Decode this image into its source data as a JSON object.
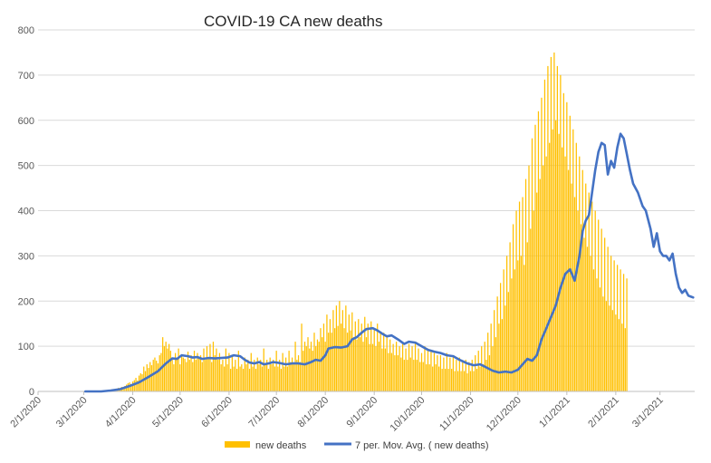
{
  "chart_data": {
    "type": "bar",
    "title": "COVID-19 CA new deaths",
    "xlabel": "",
    "ylabel": "",
    "ylim": [
      0,
      800
    ],
    "yticks": [
      "0",
      "100",
      "200",
      "300",
      "400",
      "500",
      "600",
      "700",
      "800"
    ],
    "xticks": [
      "2/1/2020",
      "3/1/2020",
      "4/1/2020",
      "5/1/2020",
      "6/1/2020",
      "7/1/2020",
      "8/1/2020",
      "9/1/2020",
      "10/1/2020",
      "11/1/2020",
      "12/1/2020",
      "1/1/2021",
      "2/1/2021",
      "3/1/2021"
    ],
    "x_start": "2020-02-01",
    "x_end": "2021-03-23",
    "grid": true,
    "legend_position": "bottom",
    "series": [
      {
        "name": "new deaths",
        "kind": "bar",
        "color": "#ffc000",
        "start_date": "2020-02-01",
        "values": [
          0,
          0,
          0,
          0,
          0,
          0,
          0,
          0,
          0,
          0,
          0,
          0,
          0,
          0,
          0,
          0,
          0,
          0,
          0,
          0,
          0,
          0,
          0,
          0,
          0,
          0,
          0,
          0,
          0,
          0,
          0,
          0,
          0,
          0,
          0,
          1,
          0,
          2,
          0,
          0,
          0,
          1,
          2,
          1,
          3,
          1,
          2,
          4,
          5,
          3,
          6,
          8,
          7,
          10,
          6,
          12,
          15,
          18,
          20,
          16,
          22,
          25,
          30,
          24,
          35,
          40,
          38,
          55,
          45,
          60,
          52,
          65,
          58,
          70,
          75,
          68,
          62,
          80,
          85,
          120,
          100,
          110,
          95,
          105,
          90,
          75,
          60,
          85,
          70,
          95,
          60,
          80,
          75,
          72,
          65,
          88,
          70,
          80,
          65,
          90,
          70,
          85,
          75,
          80,
          65,
          95,
          70,
          100,
          75,
          105,
          65,
          110,
          80,
          95,
          70,
          85,
          60,
          70,
          55,
          95,
          60,
          85,
          50,
          80,
          55,
          70,
          50,
          90,
          55,
          60,
          50,
          75,
          60,
          70,
          50,
          85,
          55,
          70,
          50,
          75,
          60,
          70,
          55,
          95,
          60,
          70,
          50,
          75,
          60,
          70,
          55,
          90,
          55,
          70,
          50,
          85,
          55,
          75,
          55,
          90,
          65,
          75,
          60,
          110,
          70,
          80,
          65,
          150,
          90,
          110,
          100,
          120,
          95,
          110,
          90,
          130,
          100,
          115,
          110,
          140,
          120,
          150,
          110,
          170,
          130,
          160,
          130,
          180,
          140,
          190,
          145,
          200,
          150,
          180,
          140,
          190,
          130,
          170,
          135,
          175,
          120,
          155,
          115,
          160,
          120,
          150,
          110,
          165,
          120,
          150,
          105,
          155,
          105,
          140,
          100,
          150,
          110,
          130,
          95,
          130,
          95,
          120,
          85,
          115,
          85,
          105,
          80,
          110,
          80,
          100,
          75,
          105,
          70,
          95,
          70,
          105,
          75,
          100,
          70,
          110,
          70,
          95,
          65,
          85,
          65,
          100,
          60,
          95,
          60,
          90,
          55,
          85,
          60,
          80,
          55,
          80,
          50,
          75,
          50,
          85,
          50,
          75,
          50,
          80,
          45,
          70,
          45,
          75,
          45,
          65,
          45,
          70,
          40,
          65,
          45,
          70,
          45,
          80,
          50,
          90,
          55,
          100,
          60,
          110,
          70,
          130,
          80,
          150,
          100,
          180,
          120,
          210,
          150,
          240,
          160,
          270,
          190,
          300,
          220,
          330,
          250,
          370,
          270,
          400,
          290,
          420,
          300,
          430,
          280,
          470,
          330,
          500,
          360,
          560,
          400,
          590,
          440,
          620,
          470,
          650,
          500,
          690,
          520,
          720,
          550,
          740,
          580,
          750,
          600,
          720,
          570,
          700,
          540,
          660,
          520,
          640,
          490,
          610,
          460,
          580,
          430,
          550,
          400,
          520,
          370,
          490,
          340,
          460,
          320,
          440,
          300,
          420,
          270,
          400,
          250,
          380,
          230,
          360,
          210,
          340,
          200,
          320,
          190,
          300,
          180,
          290,
          170,
          280,
          160,
          270,
          150,
          260,
          140,
          250
        ]
      },
      {
        "name": "7 per. Mov. Avg. ( new deaths)",
        "kind": "line",
        "color": "#4472c4",
        "points": [
          [
            "2020-03-02",
            0
          ],
          [
            "2020-03-12",
            0
          ],
          [
            "2020-03-18",
            2
          ],
          [
            "2020-03-24",
            5
          ],
          [
            "2020-03-30",
            12
          ],
          [
            "2020-04-05",
            20
          ],
          [
            "2020-04-11",
            32
          ],
          [
            "2020-04-17",
            45
          ],
          [
            "2020-04-22",
            62
          ],
          [
            "2020-04-26",
            73
          ],
          [
            "2020-04-29",
            72
          ],
          [
            "2020-05-02",
            80
          ],
          [
            "2020-05-06",
            78
          ],
          [
            "2020-05-09",
            75
          ],
          [
            "2020-05-12",
            76
          ],
          [
            "2020-05-15",
            72
          ],
          [
            "2020-05-19",
            74
          ],
          [
            "2020-05-23",
            73
          ],
          [
            "2020-05-27",
            74
          ],
          [
            "2020-05-31",
            75
          ],
          [
            "2020-06-04",
            80
          ],
          [
            "2020-06-08",
            78
          ],
          [
            "2020-06-11",
            70
          ],
          [
            "2020-06-14",
            64
          ],
          [
            "2020-06-17",
            62
          ],
          [
            "2020-06-20",
            65
          ],
          [
            "2020-06-23",
            60
          ],
          [
            "2020-06-26",
            62
          ],
          [
            "2020-06-29",
            65
          ],
          [
            "2020-07-03",
            63
          ],
          [
            "2020-07-07",
            60
          ],
          [
            "2020-07-11",
            62
          ],
          [
            "2020-07-15",
            62
          ],
          [
            "2020-07-19",
            60
          ],
          [
            "2020-07-23",
            65
          ],
          [
            "2020-07-26",
            70
          ],
          [
            "2020-07-29",
            68
          ],
          [
            "2020-08-01",
            80
          ],
          [
            "2020-08-03",
            95
          ],
          [
            "2020-08-07",
            98
          ],
          [
            "2020-08-11",
            97
          ],
          [
            "2020-08-15",
            100
          ],
          [
            "2020-08-18",
            115
          ],
          [
            "2020-08-21",
            120
          ],
          [
            "2020-08-24",
            130
          ],
          [
            "2020-08-27",
            138
          ],
          [
            "2020-08-31",
            140
          ],
          [
            "2020-09-03",
            135
          ],
          [
            "2020-09-06",
            128
          ],
          [
            "2020-09-09",
            122
          ],
          [
            "2020-09-12",
            124
          ],
          [
            "2020-09-16",
            115
          ],
          [
            "2020-09-20",
            105
          ],
          [
            "2020-09-23",
            110
          ],
          [
            "2020-09-27",
            108
          ],
          [
            "2020-10-01",
            100
          ],
          [
            "2020-10-05",
            92
          ],
          [
            "2020-10-09",
            88
          ],
          [
            "2020-10-13",
            85
          ],
          [
            "2020-10-17",
            80
          ],
          [
            "2020-10-21",
            78
          ],
          [
            "2020-10-25",
            70
          ],
          [
            "2020-10-30",
            62
          ],
          [
            "2020-11-03",
            58
          ],
          [
            "2020-11-07",
            60
          ],
          [
            "2020-11-10",
            55
          ],
          [
            "2020-11-15",
            46
          ],
          [
            "2020-11-19",
            42
          ],
          [
            "2020-11-23",
            44
          ],
          [
            "2020-11-27",
            42
          ],
          [
            "2020-12-01",
            48
          ],
          [
            "2020-12-04",
            60
          ],
          [
            "2020-12-07",
            72
          ],
          [
            "2020-12-10",
            68
          ],
          [
            "2020-12-13",
            80
          ],
          [
            "2020-12-16",
            115
          ],
          [
            "2020-12-19",
            140
          ],
          [
            "2020-12-22",
            165
          ],
          [
            "2020-12-25",
            190
          ],
          [
            "2020-12-28",
            230
          ],
          [
            "2020-12-31",
            260
          ],
          [
            "2021-01-03",
            270
          ],
          [
            "2021-01-06",
            245
          ],
          [
            "2021-01-09",
            300
          ],
          [
            "2021-01-11",
            355
          ],
          [
            "2021-01-13",
            378
          ],
          [
            "2021-01-15",
            390
          ],
          [
            "2021-01-17",
            440
          ],
          [
            "2021-01-19",
            490
          ],
          [
            "2021-01-21",
            530
          ],
          [
            "2021-01-23",
            550
          ],
          [
            "2021-01-25",
            545
          ],
          [
            "2021-01-27",
            480
          ],
          [
            "2021-01-29",
            510
          ],
          [
            "2021-01-31",
            495
          ],
          [
            "2021-02-02",
            540
          ],
          [
            "2021-02-04",
            570
          ],
          [
            "2021-02-06",
            560
          ],
          [
            "2021-02-08",
            525
          ],
          [
            "2021-02-10",
            490
          ],
          [
            "2021-02-12",
            460
          ],
          [
            "2021-02-15",
            440
          ],
          [
            "2021-02-18",
            410
          ],
          [
            "2021-02-20",
            400
          ],
          [
            "2021-02-23",
            360
          ],
          [
            "2021-02-25",
            320
          ],
          [
            "2021-02-27",
            350
          ],
          [
            "2021-03-01",
            310
          ],
          [
            "2021-03-03",
            300
          ],
          [
            "2021-03-05",
            300
          ],
          [
            "2021-03-07",
            290
          ],
          [
            "2021-03-09",
            305
          ],
          [
            "2021-03-11",
            260
          ],
          [
            "2021-03-13",
            230
          ],
          [
            "2021-03-15",
            218
          ],
          [
            "2021-03-17",
            225
          ],
          [
            "2021-03-19",
            212
          ],
          [
            "2021-03-22",
            208
          ]
        ]
      }
    ]
  }
}
